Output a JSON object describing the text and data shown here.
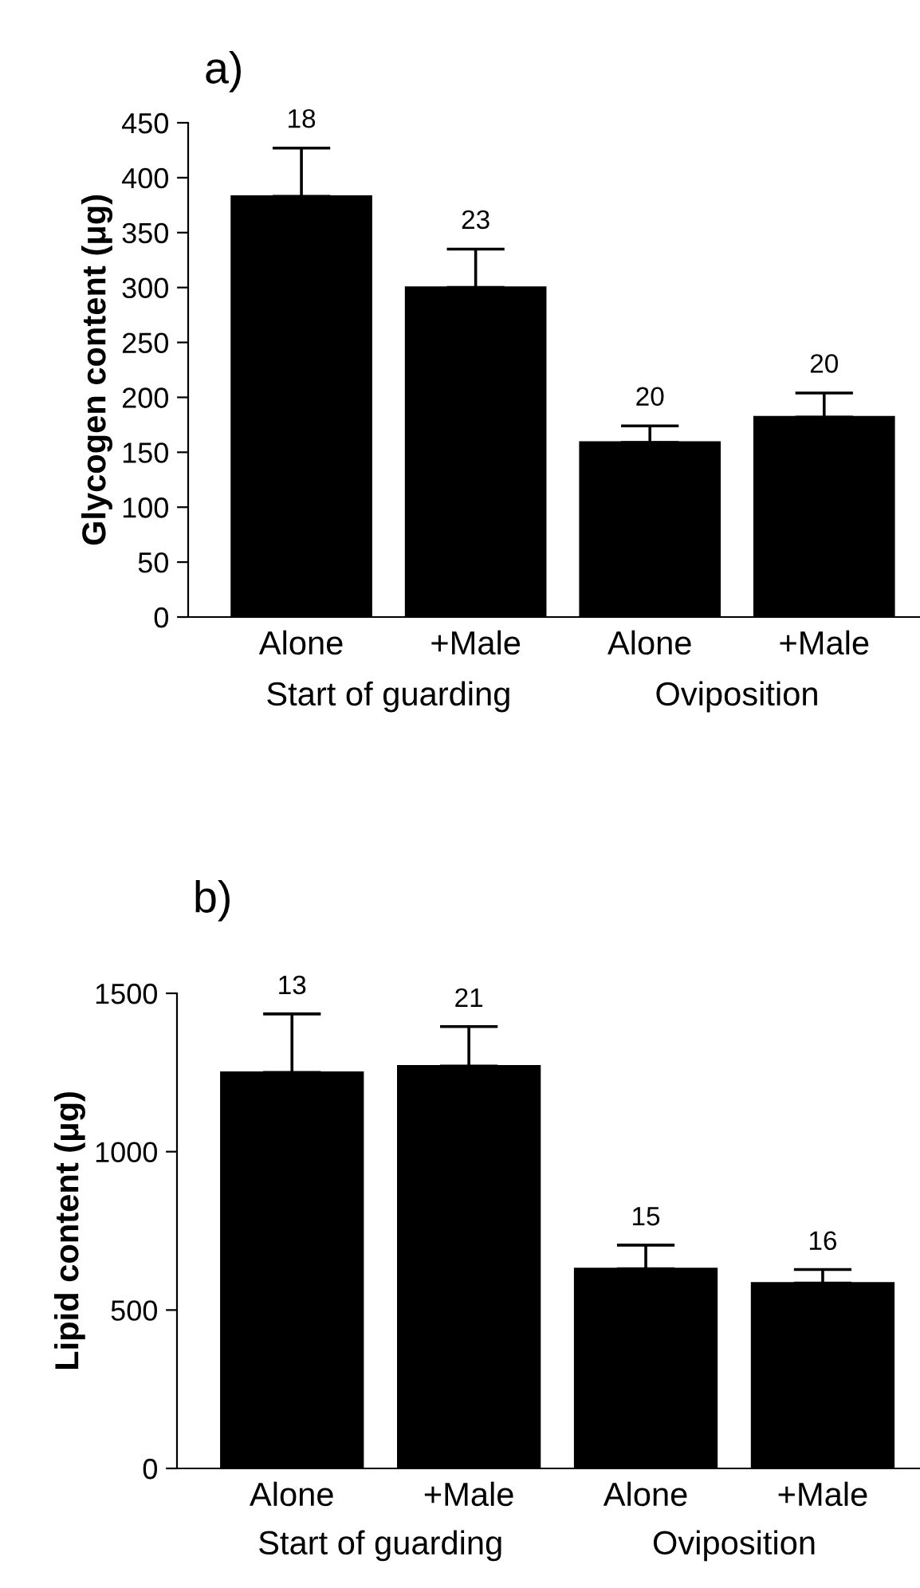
{
  "chart_data": [
    {
      "type": "bar",
      "title": "a)",
      "ylabel": "Glycogen content (μg)",
      "categories": [
        "Alone",
        "+Male",
        "Alone",
        "+Male"
      ],
      "values": [
        383,
        300,
        159,
        182
      ],
      "errors": [
        [
          383,
          427
        ],
        [
          300,
          335
        ],
        [
          159,
          174
        ],
        [
          182,
          204
        ]
      ],
      "color": "#000000",
      "ylim": [
        0,
        450
      ],
      "yticks": [
        0,
        50,
        100,
        150,
        200,
        250,
        300,
        350,
        400,
        450
      ],
      "annotations": [
        "18",
        "23",
        "20",
        "20",
        "Start of guarding",
        "Oviposition"
      ]
    },
    {
      "type": "bar",
      "title": "b)",
      "ylabel": "Lipid content (μg)",
      "categories": [
        "Alone",
        "+Male",
        "Alone",
        "+Male"
      ],
      "values": [
        1250,
        1270,
        630,
        585
      ],
      "errors": [
        [
          1250,
          1435
        ],
        [
          1270,
          1395
        ],
        [
          630,
          705
        ],
        [
          585,
          628
        ]
      ],
      "color": "#000000",
      "ylim": [
        0,
        1500
      ],
      "yticks": [
        0,
        500,
        1000,
        1500
      ],
      "annotations": [
        "13",
        "21",
        "15",
        "16",
        "Start of guarding",
        "Oviposition"
      ]
    }
  ]
}
